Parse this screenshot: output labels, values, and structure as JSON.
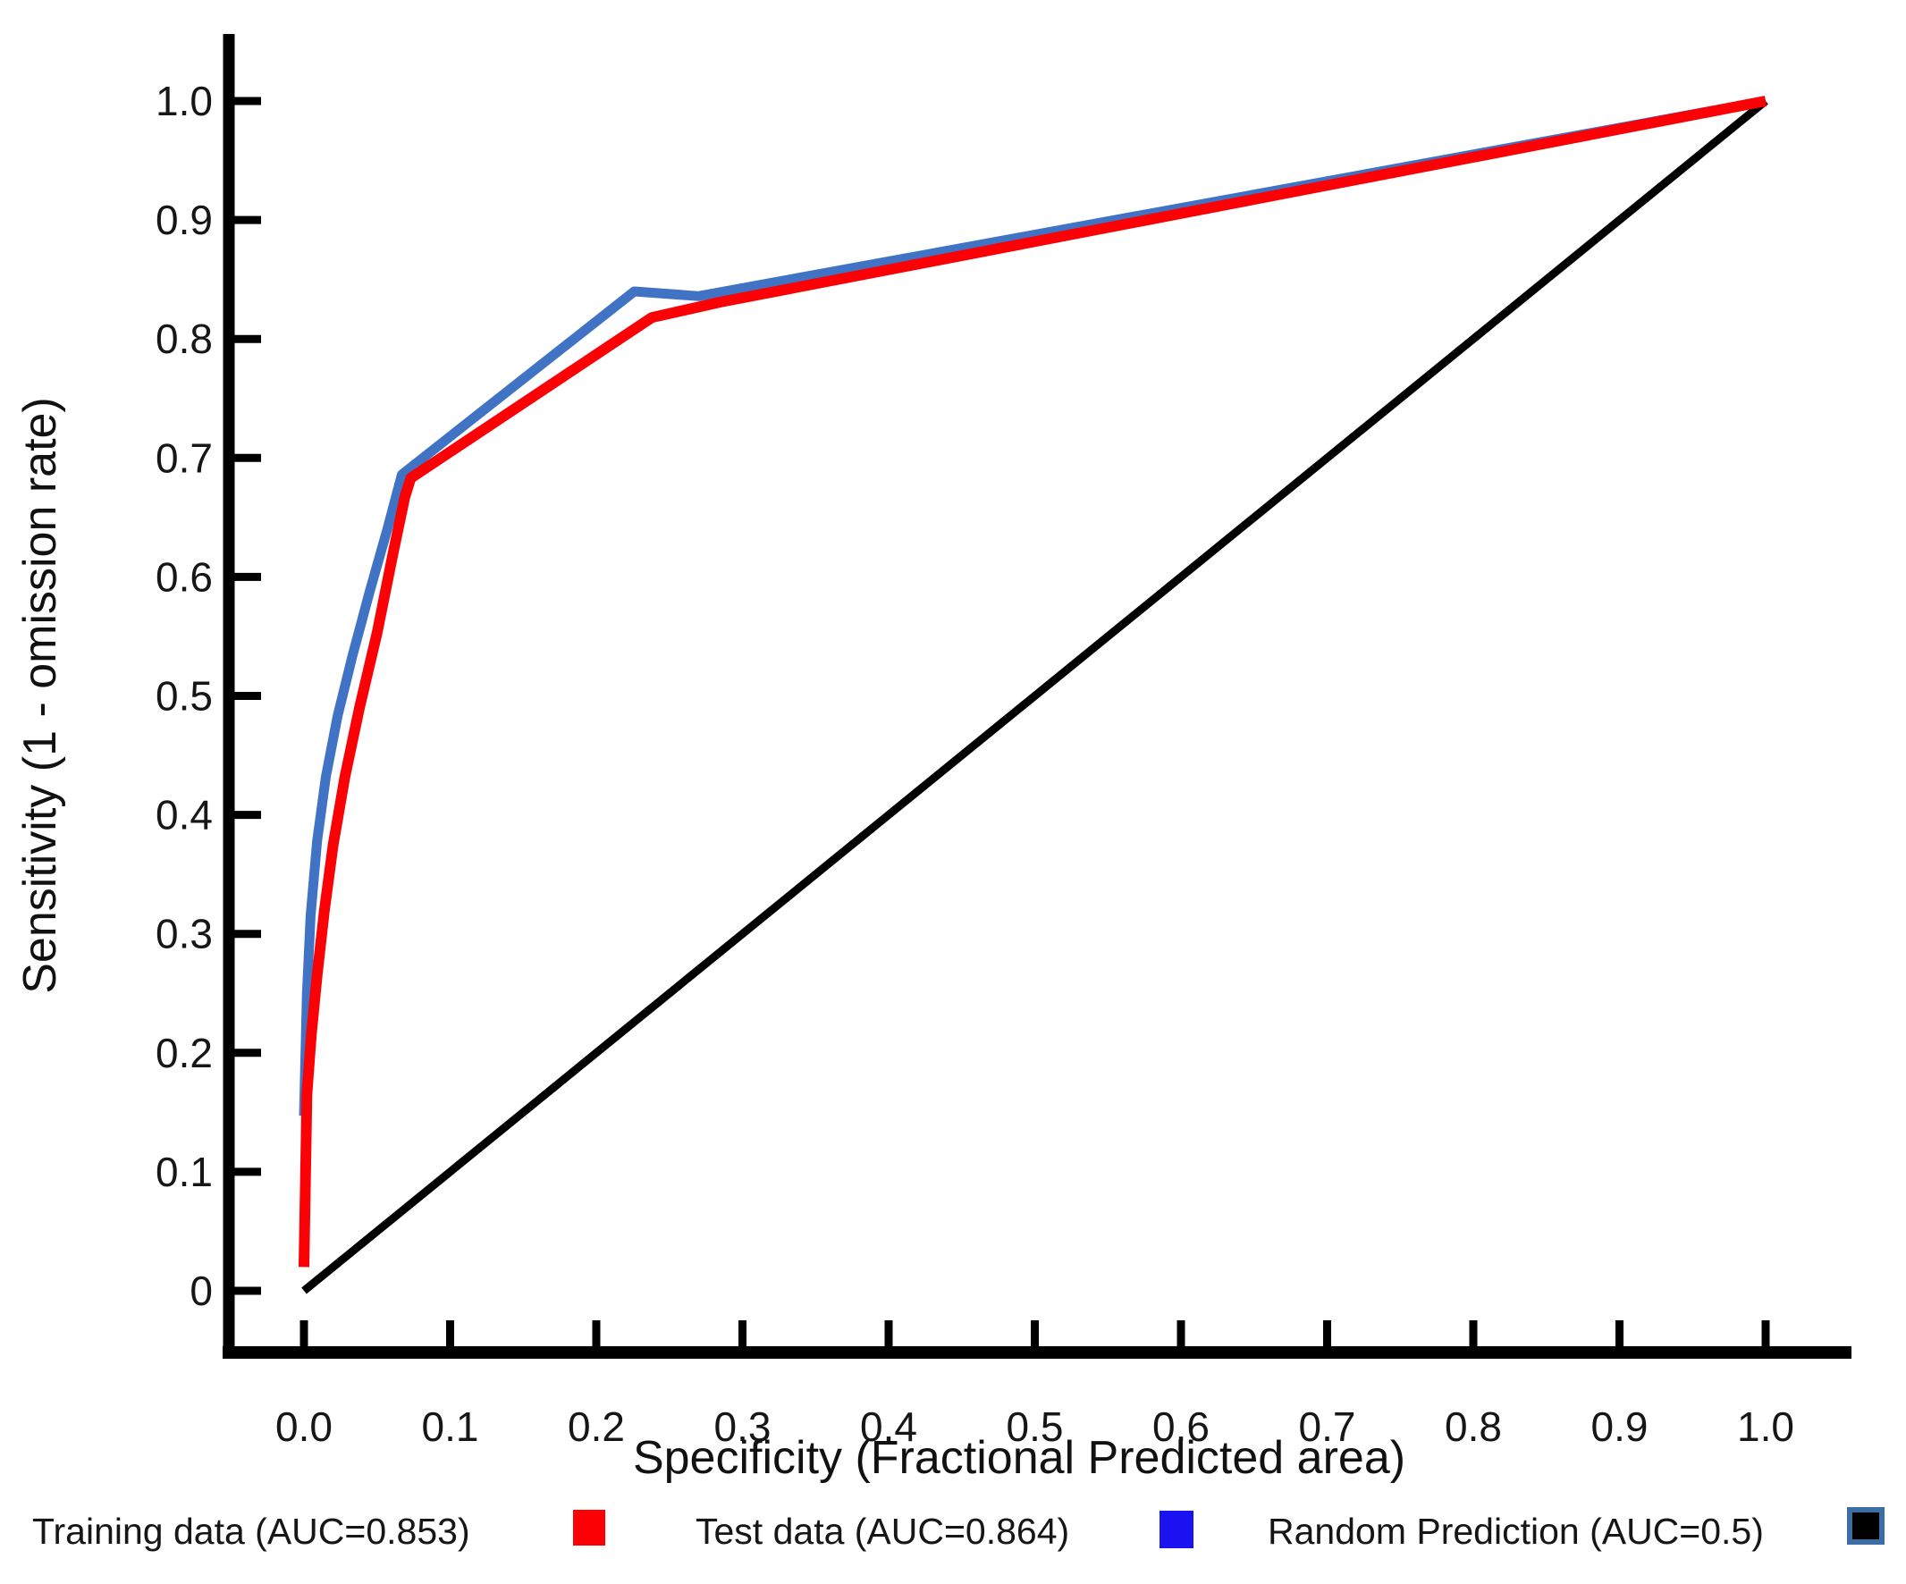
{
  "chart_data": {
    "type": "line",
    "title": "",
    "xlabel": "Specificity  (Fractional Predicted area)",
    "ylabel": "Sensitivity (1 - omission rate)",
    "xlim": [
      0,
      1
    ],
    "ylim": [
      0,
      1
    ],
    "grid": false,
    "legend_position": "bottom",
    "axis_color": "#000000",
    "text_color": "#161616",
    "x_ticks": [
      {
        "value": 0.0,
        "label": "0.0"
      },
      {
        "value": 0.1,
        "label": "0.1"
      },
      {
        "value": 0.2,
        "label": "0.2"
      },
      {
        "value": 0.3,
        "label": "0.3"
      },
      {
        "value": 0.4,
        "label": "0.4"
      },
      {
        "value": 0.5,
        "label": "0.5"
      },
      {
        "value": 0.6,
        "label": "0.6"
      },
      {
        "value": 0.7,
        "label": "0.7"
      },
      {
        "value": 0.8,
        "label": "0.8"
      },
      {
        "value": 0.9,
        "label": "0.9"
      },
      {
        "value": 1.0,
        "label": "1.0"
      }
    ],
    "y_ticks": [
      {
        "value": 0.0,
        "label": "0"
      },
      {
        "value": 0.1,
        "label": "0.1"
      },
      {
        "value": 0.2,
        "label": "0.2"
      },
      {
        "value": 0.3,
        "label": "0.3"
      },
      {
        "value": 0.4,
        "label": "0.4"
      },
      {
        "value": 0.5,
        "label": "0.5"
      },
      {
        "value": 0.6,
        "label": "0.6"
      },
      {
        "value": 0.7,
        "label": "0.7"
      },
      {
        "value": 0.8,
        "label": "0.8"
      },
      {
        "value": 0.9,
        "label": "0.9"
      },
      {
        "value": 1.0,
        "label": "1.0"
      }
    ],
    "series": [
      {
        "name": "Random Prediction",
        "auc": "0.5",
        "legend_label": "Random Prediction (AUC=0.5)",
        "line_color": "#000000",
        "swatch_color": "#000000",
        "swatch_border_color": "#3C6EA5",
        "points": [
          [
            0,
            0
          ],
          [
            1,
            1
          ]
        ]
      },
      {
        "name": "Test data",
        "auc": "0.864",
        "legend_label": "Test data (AUC=0.864)",
        "line_color": "#4173C5",
        "swatch_color": "#1B12F0",
        "swatch_border_color": null,
        "points": [
          [
            0,
            0.147
          ],
          [
            0.002,
            0.25
          ],
          [
            0.0045,
            0.315
          ],
          [
            0.009,
            0.378
          ],
          [
            0.015,
            0.432
          ],
          [
            0.023,
            0.483
          ],
          [
            0.033,
            0.533
          ],
          [
            0.045,
            0.588
          ],
          [
            0.057,
            0.64
          ],
          [
            0.067,
            0.686
          ],
          [
            0.226,
            0.84
          ],
          [
            0.27,
            0.836
          ],
          [
            1,
            1
          ]
        ]
      },
      {
        "name": "Training data",
        "auc": "0.853",
        "legend_label": "Training data (AUC=0.853)",
        "line_color": "#FB0005",
        "swatch_color": "#FB0005",
        "swatch_border_color": null,
        "points": [
          [
            0,
            0.02
          ],
          [
            0.001,
            0.09
          ],
          [
            0.002,
            0.165
          ],
          [
            0.005,
            0.215
          ],
          [
            0.009,
            0.265
          ],
          [
            0.014,
            0.32
          ],
          [
            0.02,
            0.375
          ],
          [
            0.028,
            0.432
          ],
          [
            0.038,
            0.49
          ],
          [
            0.05,
            0.553
          ],
          [
            0.061,
            0.62
          ],
          [
            0.069,
            0.667
          ],
          [
            0.073,
            0.683
          ],
          [
            0.238,
            0.818
          ],
          [
            0.285,
            0.831
          ],
          [
            1,
            1
          ]
        ]
      }
    ],
    "legend_order": [
      "Training data",
      "Test data",
      "Random Prediction"
    ]
  }
}
